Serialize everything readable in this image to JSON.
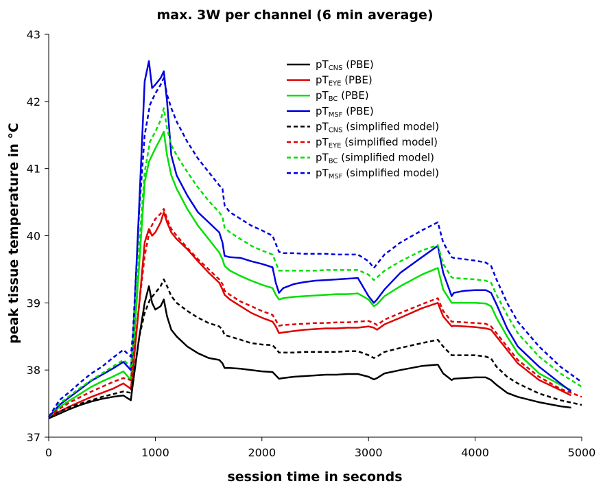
{
  "chart_data": {
    "type": "line",
    "title": "max. 3W per channel (6 min average)",
    "xlabel": "session time in seconds",
    "ylabel": "peak tissue temperature in °C",
    "xlim": [
      0,
      5000
    ],
    "ylim": [
      37,
      43
    ],
    "xticks": [
      0,
      1000,
      2000,
      3000,
      4000,
      5000
    ],
    "yticks": [
      37,
      38,
      39,
      40,
      41,
      42,
      43
    ],
    "legend_position": "top-right",
    "colors": {
      "CNS": "#000000",
      "EYE": "#e00000",
      "BC": "#00e000",
      "MSF": "#0000e0"
    },
    "series": [
      {
        "name": "pTCNS (PBE)",
        "prefix": "pT",
        "sub": "CNS",
        "suffix": " (PBE)",
        "color": "#000000",
        "style": "solid",
        "x": [
          0,
          100,
          200,
          300,
          400,
          500,
          600,
          700,
          770,
          790,
          850,
          900,
          940,
          970,
          1000,
          1050,
          1080,
          1110,
          1150,
          1200,
          1300,
          1400,
          1500,
          1600,
          1630,
          1650,
          1700,
          1800,
          1900,
          2000,
          2100,
          2130,
          2160,
          2200,
          2300,
          2400,
          2500,
          2600,
          2700,
          2800,
          2900,
          3000,
          3050,
          3080,
          3150,
          3300,
          3500,
          3650,
          3700,
          3780,
          3800,
          3900,
          4000,
          4100,
          4150,
          4200,
          4300,
          4400,
          4600,
          4800,
          4900
        ],
        "y": [
          37.28,
          37.35,
          37.42,
          37.48,
          37.53,
          37.57,
          37.6,
          37.62,
          37.55,
          37.8,
          38.5,
          39.0,
          39.25,
          39.0,
          38.9,
          38.95,
          39.05,
          38.8,
          38.6,
          38.5,
          38.35,
          38.25,
          38.18,
          38.15,
          38.1,
          38.03,
          38.03,
          38.02,
          38.0,
          37.98,
          37.97,
          37.92,
          37.87,
          37.88,
          37.9,
          37.91,
          37.92,
          37.93,
          37.93,
          37.94,
          37.94,
          37.9,
          37.86,
          37.88,
          37.95,
          38.0,
          38.06,
          38.08,
          37.95,
          37.85,
          37.87,
          37.88,
          37.89,
          37.89,
          37.85,
          37.78,
          37.66,
          37.6,
          37.52,
          37.46,
          37.44
        ]
      },
      {
        "name": "pTEYE (PBE)",
        "prefix": "pT",
        "sub": "EYE",
        "suffix": " (PBE)",
        "color": "#e00000",
        "style": "solid",
        "x": [
          0,
          100,
          200,
          300,
          400,
          500,
          600,
          700,
          770,
          790,
          850,
          900,
          940,
          970,
          1000,
          1050,
          1080,
          1110,
          1150,
          1200,
          1300,
          1400,
          1500,
          1600,
          1630,
          1650,
          1700,
          1800,
          1900,
          2000,
          2100,
          2130,
          2160,
          2200,
          2300,
          2400,
          2500,
          2600,
          2700,
          2800,
          2900,
          3000,
          3050,
          3080,
          3150,
          3300,
          3500,
          3650,
          3700,
          3780,
          3800,
          3900,
          4000,
          4100,
          4150,
          4200,
          4300,
          4400,
          4600,
          4800,
          4900
        ],
        "y": [
          37.3,
          37.38,
          37.46,
          37.53,
          37.6,
          37.66,
          37.72,
          37.8,
          37.72,
          38.0,
          39.0,
          39.9,
          40.1,
          40.0,
          40.05,
          40.2,
          40.35,
          40.2,
          40.05,
          39.95,
          39.8,
          39.62,
          39.45,
          39.3,
          39.2,
          39.12,
          39.05,
          38.95,
          38.85,
          38.78,
          38.72,
          38.65,
          38.55,
          38.56,
          38.58,
          38.6,
          38.61,
          38.62,
          38.62,
          38.63,
          38.63,
          38.65,
          38.63,
          38.6,
          38.68,
          38.78,
          38.92,
          39.0,
          38.8,
          38.65,
          38.66,
          38.65,
          38.64,
          38.62,
          38.6,
          38.5,
          38.3,
          38.1,
          37.85,
          37.7,
          37.62
        ]
      },
      {
        "name": "pTBC (PBE)",
        "prefix": "pT",
        "sub": "BC",
        "suffix": " (PBE)",
        "color": "#00e000",
        "style": "solid",
        "x": [
          0,
          100,
          200,
          300,
          400,
          500,
          600,
          700,
          770,
          790,
          850,
          900,
          940,
          970,
          1000,
          1050,
          1080,
          1110,
          1150,
          1200,
          1300,
          1400,
          1500,
          1600,
          1630,
          1650,
          1700,
          1800,
          1900,
          2000,
          2100,
          2130,
          2160,
          2200,
          2300,
          2400,
          2500,
          2600,
          2700,
          2800,
          2900,
          3000,
          3050,
          3080,
          3150,
          3300,
          3500,
          3650,
          3700,
          3780,
          3800,
          3900,
          4000,
          4100,
          4150,
          4200,
          4300,
          4400,
          4600,
          4800,
          4900
        ],
        "y": [
          37.3,
          37.45,
          37.55,
          37.65,
          37.75,
          37.83,
          37.9,
          37.98,
          37.85,
          38.2,
          39.6,
          40.8,
          41.1,
          41.2,
          41.3,
          41.45,
          41.55,
          41.2,
          40.9,
          40.7,
          40.4,
          40.15,
          39.95,
          39.75,
          39.65,
          39.55,
          39.48,
          39.4,
          39.33,
          39.27,
          39.22,
          39.12,
          39.05,
          39.07,
          39.09,
          39.1,
          39.11,
          39.12,
          39.13,
          39.13,
          39.14,
          39.05,
          38.95,
          38.98,
          39.1,
          39.25,
          39.42,
          39.52,
          39.2,
          39.0,
          39.0,
          39.0,
          39.0,
          38.99,
          38.95,
          38.78,
          38.5,
          38.25,
          37.95,
          37.78,
          37.7
        ]
      },
      {
        "name": "pTMSF (PBE)",
        "prefix": "pT",
        "sub": "MSF",
        "suffix": " (PBE)",
        "color": "#0000e0",
        "style": "solid",
        "x": [
          0,
          100,
          200,
          300,
          400,
          500,
          600,
          700,
          770,
          790,
          850,
          900,
          940,
          970,
          1000,
          1050,
          1080,
          1110,
          1150,
          1200,
          1300,
          1400,
          1500,
          1600,
          1630,
          1650,
          1700,
          1800,
          1900,
          2000,
          2100,
          2130,
          2160,
          2200,
          2300,
          2400,
          2500,
          2600,
          2700,
          2800,
          2900,
          3000,
          3050,
          3080,
          3150,
          3300,
          3500,
          3650,
          3700,
          3780,
          3800,
          3900,
          4000,
          4100,
          4150,
          4200,
          4300,
          4400,
          4600,
          4800,
          4900
        ],
        "y": [
          37.3,
          37.48,
          37.6,
          37.72,
          37.84,
          37.93,
          38.02,
          38.12,
          38.0,
          38.4,
          40.5,
          42.3,
          42.6,
          42.2,
          42.25,
          42.35,
          42.45,
          42.0,
          41.2,
          40.9,
          40.6,
          40.35,
          40.2,
          40.05,
          39.9,
          39.7,
          39.68,
          39.67,
          39.62,
          39.58,
          39.53,
          39.3,
          39.15,
          39.22,
          39.28,
          39.31,
          39.33,
          39.34,
          39.35,
          39.36,
          39.37,
          39.1,
          39.0,
          39.05,
          39.2,
          39.45,
          39.68,
          39.85,
          39.45,
          39.1,
          39.15,
          39.18,
          39.19,
          39.19,
          39.15,
          38.98,
          38.62,
          38.35,
          38.05,
          37.8,
          37.68
        ]
      },
      {
        "name": "pTCNS (simplified model)",
        "prefix": "pT",
        "sub": "CNS",
        "suffix": " (simplified model)",
        "color": "#000000",
        "style": "dashed",
        "x": [
          0,
          100,
          200,
          300,
          400,
          500,
          600,
          700,
          770,
          790,
          850,
          900,
          950,
          1000,
          1050,
          1080,
          1110,
          1150,
          1200,
          1300,
          1400,
          1500,
          1600,
          1630,
          1650,
          1700,
          1800,
          1900,
          2000,
          2100,
          2130,
          2160,
          2200,
          2300,
          2400,
          2500,
          2600,
          2700,
          2800,
          2900,
          3000,
          3050,
          3080,
          3150,
          3300,
          3500,
          3650,
          3700,
          3780,
          3800,
          3900,
          4000,
          4100,
          4150,
          4200,
          4300,
          4400,
          4600,
          4800,
          5000
        ],
        "y": [
          37.3,
          37.38,
          37.45,
          37.5,
          37.55,
          37.6,
          37.64,
          37.68,
          37.66,
          37.85,
          38.5,
          38.85,
          39.05,
          39.15,
          39.25,
          39.35,
          39.25,
          39.1,
          39.0,
          38.88,
          38.78,
          38.7,
          38.65,
          38.6,
          38.52,
          38.5,
          38.45,
          38.4,
          38.38,
          38.37,
          38.32,
          38.26,
          38.26,
          38.26,
          38.27,
          38.27,
          38.27,
          38.27,
          38.28,
          38.28,
          38.22,
          38.18,
          38.2,
          38.27,
          38.33,
          38.4,
          38.45,
          38.35,
          38.22,
          38.22,
          38.22,
          38.22,
          38.2,
          38.17,
          38.05,
          37.9,
          37.8,
          37.65,
          37.55,
          37.48
        ]
      },
      {
        "name": "pTEYE (simplified model)",
        "prefix": "pT",
        "sub": "EYE",
        "suffix": " (simplified model)",
        "color": "#e00000",
        "style": "dashed",
        "x": [
          0,
          100,
          200,
          300,
          400,
          500,
          600,
          700,
          770,
          790,
          850,
          900,
          950,
          1000,
          1050,
          1080,
          1110,
          1150,
          1200,
          1300,
          1400,
          1500,
          1600,
          1630,
          1650,
          1700,
          1800,
          1900,
          2000,
          2100,
          2130,
          2160,
          2200,
          2300,
          2400,
          2500,
          2600,
          2700,
          2800,
          2900,
          3000,
          3050,
          3080,
          3150,
          3300,
          3500,
          3650,
          3700,
          3780,
          3800,
          3900,
          4000,
          4100,
          4150,
          4200,
          4300,
          4400,
          4600,
          4800,
          5000
        ],
        "y": [
          37.3,
          37.42,
          37.52,
          37.6,
          37.68,
          37.75,
          37.82,
          37.88,
          37.85,
          38.1,
          39.0,
          39.7,
          40.1,
          40.25,
          40.33,
          40.4,
          40.25,
          40.1,
          40.0,
          39.82,
          39.65,
          39.5,
          39.35,
          39.28,
          39.18,
          39.12,
          39.02,
          38.95,
          38.88,
          38.82,
          38.74,
          38.66,
          38.67,
          38.68,
          38.69,
          38.7,
          38.7,
          38.71,
          38.71,
          38.72,
          38.73,
          38.7,
          38.67,
          38.75,
          38.85,
          38.98,
          39.07,
          38.88,
          38.72,
          38.72,
          38.71,
          38.7,
          38.69,
          38.65,
          38.55,
          38.35,
          38.15,
          37.9,
          37.72,
          37.6
        ]
      },
      {
        "name": "pTBC (simplified model)",
        "prefix": "pT",
        "sub": "BC",
        "suffix": " (simplified model)",
        "color": "#00e000",
        "style": "dashed",
        "x": [
          0,
          100,
          200,
          300,
          400,
          500,
          600,
          700,
          770,
          790,
          850,
          900,
          950,
          1000,
          1050,
          1080,
          1110,
          1150,
          1200,
          1300,
          1400,
          1500,
          1600,
          1630,
          1650,
          1700,
          1800,
          1900,
          2000,
          2100,
          2130,
          2160,
          2200,
          2300,
          2400,
          2500,
          2600,
          2700,
          2800,
          2900,
          3000,
          3050,
          3080,
          3150,
          3300,
          3500,
          3650,
          3700,
          3780,
          3800,
          3900,
          4000,
          4100,
          4150,
          4200,
          4300,
          4400,
          4600,
          4800,
          5000
        ],
        "y": [
          37.3,
          37.5,
          37.62,
          37.74,
          37.85,
          37.95,
          38.05,
          38.15,
          38.05,
          38.4,
          39.9,
          40.95,
          41.4,
          41.55,
          41.72,
          41.9,
          41.6,
          41.35,
          41.2,
          40.95,
          40.72,
          40.52,
          40.35,
          40.28,
          40.12,
          40.05,
          39.95,
          39.85,
          39.78,
          39.72,
          39.6,
          39.48,
          39.48,
          39.48,
          39.48,
          39.48,
          39.49,
          39.49,
          39.49,
          39.49,
          39.42,
          39.34,
          39.38,
          39.48,
          39.62,
          39.78,
          39.86,
          39.58,
          39.38,
          39.37,
          39.36,
          39.35,
          39.33,
          39.3,
          39.12,
          38.82,
          38.55,
          38.2,
          37.95,
          37.75
        ]
      },
      {
        "name": "pTMSF (simplified model)",
        "prefix": "pT",
        "sub": "MSF",
        "suffix": " (simplified model)",
        "color": "#0000e0",
        "style": "dashed",
        "x": [
          0,
          100,
          200,
          300,
          400,
          500,
          600,
          700,
          770,
          790,
          850,
          900,
          950,
          1000,
          1050,
          1080,
          1110,
          1150,
          1200,
          1300,
          1400,
          1500,
          1600,
          1630,
          1650,
          1700,
          1800,
          1900,
          2000,
          2100,
          2130,
          2160,
          2200,
          2300,
          2400,
          2500,
          2600,
          2700,
          2800,
          2900,
          3000,
          3050,
          3080,
          3150,
          3300,
          3500,
          3650,
          3700,
          3780,
          3800,
          3900,
          4000,
          4100,
          4150,
          4200,
          4300,
          4400,
          4600,
          4800,
          5000
        ],
        "y": [
          37.3,
          37.55,
          37.68,
          37.82,
          37.95,
          38.05,
          38.18,
          38.3,
          38.2,
          38.55,
          40.4,
          41.5,
          41.95,
          42.12,
          42.25,
          42.35,
          42.1,
          41.9,
          41.7,
          41.4,
          41.15,
          40.95,
          40.75,
          40.7,
          40.45,
          40.35,
          40.25,
          40.15,
          40.08,
          40.0,
          39.88,
          39.76,
          39.74,
          39.74,
          39.73,
          39.73,
          39.73,
          39.72,
          39.72,
          39.72,
          39.62,
          39.52,
          39.58,
          39.72,
          39.9,
          40.08,
          40.2,
          39.9,
          39.68,
          39.67,
          39.65,
          39.63,
          39.6,
          39.55,
          39.35,
          39.0,
          38.72,
          38.35,
          38.05,
          37.82
        ]
      }
    ]
  }
}
